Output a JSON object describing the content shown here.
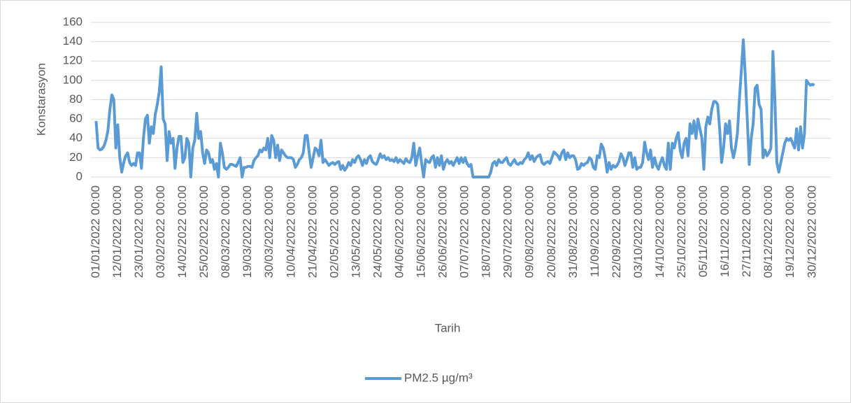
{
  "chart_data": {
    "type": "line",
    "ylabel": "Konstarasyon",
    "xlabel": "Tarih",
    "ylim": [
      0,
      160
    ],
    "yticks": [
      0,
      20,
      40,
      60,
      80,
      100,
      120,
      140,
      160
    ],
    "grid": true,
    "legend": "bottom",
    "categories": [
      "01/01/2022 00:00",
      null,
      null,
      null,
      null,
      null,
      null,
      null,
      null,
      null,
      null,
      "12/01/2022 00:00",
      null,
      null,
      null,
      null,
      null,
      null,
      null,
      null,
      null,
      null,
      "23/01/2022 00:00",
      null,
      null,
      null,
      null,
      null,
      null,
      null,
      null,
      null,
      null,
      "03/02/2022 00:00",
      null,
      null,
      null,
      null,
      null,
      null,
      null,
      null,
      null,
      null,
      "14/02/2022 00:00",
      null,
      null,
      null,
      null,
      null,
      null,
      null,
      null,
      null,
      null,
      "25/02/2022 00:00",
      null,
      null,
      null,
      null,
      null,
      null,
      null,
      null,
      null,
      null,
      "08/03/2022 00:00",
      null,
      null,
      null,
      null,
      null,
      null,
      null,
      null,
      null,
      null,
      "19/03/2022 00:00",
      null,
      null,
      null,
      null,
      null,
      null,
      null,
      null,
      null,
      null,
      "30/03/2022 00:00",
      null,
      null,
      null,
      null,
      null,
      null,
      null,
      null,
      null,
      null,
      "10/04/2022 00:00",
      null,
      null,
      null,
      null,
      null,
      null,
      null,
      null,
      null,
      null,
      "21/04/2022 00:00",
      null,
      null,
      null,
      null,
      null,
      null,
      null,
      null,
      null,
      null,
      "02/05/2022 00:00",
      null,
      null,
      null,
      null,
      null,
      null,
      null,
      null,
      null,
      null,
      "13/05/2022 00:00",
      null,
      null,
      null,
      null,
      null,
      null,
      null,
      null,
      null,
      null,
      "24/05/2022 00:00",
      null,
      null,
      null,
      null,
      null,
      null,
      null,
      null,
      null,
      null,
      "04/06/2022 00:00",
      null,
      null,
      null,
      null,
      null,
      null,
      null,
      null,
      null,
      null,
      "15/06/2022 00:00",
      null,
      null,
      null,
      null,
      null,
      null,
      null,
      null,
      null,
      null,
      "26/06/2022 00:00",
      null,
      null,
      null,
      null,
      null,
      null,
      null,
      null,
      null,
      null,
      "07/07/2022 00:00",
      null,
      null,
      null,
      null,
      null,
      null,
      null,
      null,
      null,
      null,
      "18/07/2022 00:00",
      null,
      null,
      null,
      null,
      null,
      null,
      null,
      null,
      null,
      null,
      "29/07/2022 00:00",
      null,
      null,
      null,
      null,
      null,
      null,
      null,
      null,
      null,
      null,
      "09/08/2022 00:00",
      null,
      null,
      null,
      null,
      null,
      null,
      null,
      null,
      null,
      null,
      "20/08/2022 00:00",
      null,
      null,
      null,
      null,
      null,
      null,
      null,
      null,
      null,
      null,
      "31/08/2022 00:00",
      null,
      null,
      null,
      null,
      null,
      null,
      null,
      null,
      null,
      null,
      "11/09/2022 00:00",
      null,
      null,
      null,
      null,
      null,
      null,
      null,
      null,
      null,
      null,
      "22/09/2022 00:00",
      null,
      null,
      null,
      null,
      null,
      null,
      null,
      null,
      null,
      null,
      "03/10/2022 00:00",
      null,
      null,
      null,
      null,
      null,
      null,
      null,
      null,
      null,
      null,
      "14/10/2022 00:00",
      null,
      null,
      null,
      null,
      null,
      null,
      null,
      null,
      null,
      null,
      "25/10/2022 00:00",
      null,
      null,
      null,
      null,
      null,
      null,
      null,
      null,
      null,
      null,
      "05/11/2022 00:00",
      null,
      null,
      null,
      null,
      null,
      null,
      null,
      null,
      null,
      null,
      "16/11/2022 00:00",
      null,
      null,
      null,
      null,
      null,
      null,
      null,
      null,
      null,
      null,
      "27/11/2022 00:00",
      null,
      null,
      null,
      null,
      null,
      null,
      null,
      null,
      null,
      null,
      "08/12/2022 00:00",
      null,
      null,
      null,
      null,
      null,
      null,
      null,
      null,
      null,
      null,
      "19/12/2022 00:00",
      null,
      null,
      null,
      null,
      null,
      null,
      null,
      null,
      null,
      null,
      "30/12/2022 00:00",
      null
    ],
    "series": [
      {
        "name": "PM2.5 µg/m³",
        "color": "#5b9bd5",
        "values": [
          58,
          30,
          28,
          29,
          32,
          38,
          48,
          70,
          85,
          80,
          30,
          54,
          20,
          5,
          15,
          22,
          25,
          15,
          12,
          14,
          12,
          25,
          25,
          9,
          40,
          60,
          64,
          35,
          52,
          45,
          65,
          75,
          88,
          114,
          60,
          55,
          17,
          47,
          35,
          40,
          9,
          30,
          42,
          42,
          15,
          20,
          40,
          35,
          0,
          30,
          38,
          66,
          40,
          47,
          25,
          14,
          28,
          25,
          15,
          18,
          8,
          14,
          0,
          35,
          25,
          10,
          8,
          10,
          13,
          13,
          12,
          11,
          15,
          20,
          0,
          10,
          10,
          11,
          11,
          10,
          17,
          20,
          22,
          28,
          26,
          30,
          28,
          40,
          20,
          43,
          38,
          20,
          33,
          17,
          28,
          25,
          22,
          20,
          20,
          20,
          18,
          10,
          13,
          18,
          20,
          25,
          43,
          43,
          25,
          10,
          20,
          30,
          28,
          22,
          38,
          15,
          18,
          15,
          12,
          14,
          15,
          13,
          15,
          16,
          8,
          12,
          7,
          10,
          15,
          12,
          18,
          15,
          20,
          22,
          18,
          12,
          18,
          14,
          20,
          22,
          16,
          14,
          13,
          18,
          24,
          20,
          22,
          18,
          20,
          17,
          18,
          16,
          20,
          15,
          18,
          16,
          14,
          19,
          16,
          15,
          20,
          35,
          12,
          22,
          30,
          14,
          0,
          18,
          16,
          15,
          20,
          22,
          10,
          20,
          12,
          22,
          8,
          15,
          18,
          14,
          16,
          12,
          16,
          20,
          14,
          20,
          15,
          20,
          14,
          11,
          13,
          0,
          0,
          0,
          0,
          0,
          0,
          0,
          0,
          0,
          5,
          14,
          16,
          12,
          18,
          15,
          15,
          18,
          20,
          14,
          12,
          15,
          18,
          14,
          13,
          15,
          14,
          18,
          20,
          25,
          18,
          22,
          16,
          20,
          22,
          23,
          15,
          13,
          15,
          16,
          14,
          20,
          26,
          24,
          22,
          18,
          25,
          28,
          18,
          25,
          20,
          22,
          22,
          18,
          8,
          9,
          14,
          12,
          14,
          15,
          20,
          18,
          10,
          8,
          22,
          20,
          34,
          30,
          20,
          5,
          15,
          8,
          12,
          10,
          12,
          16,
          24,
          20,
          12,
          18,
          25,
          25,
          10,
          20,
          8,
          10,
          10,
          15,
          36,
          25,
          18,
          28,
          10,
          20,
          12,
          8,
          15,
          20,
          12,
          8,
          35,
          8,
          35,
          30,
          40,
          46,
          28,
          20,
          35,
          40,
          22,
          55,
          45,
          58,
          40,
          60,
          50,
          40,
          8,
          52,
          62,
          55,
          70,
          78,
          78,
          75,
          50,
          15,
          30,
          55,
          45,
          58,
          30,
          20,
          30,
          45,
          80,
          110,
          142,
          105,
          60,
          13,
          40,
          55,
          92,
          95,
          75,
          70,
          20,
          28,
          22,
          25,
          30,
          130,
          80,
          15,
          5,
          15,
          25,
          35,
          40,
          38,
          40,
          35,
          30,
          50,
          28,
          52,
          30,
          45,
          100,
          97,
          95,
          96,
          95
        ]
      }
    ]
  }
}
